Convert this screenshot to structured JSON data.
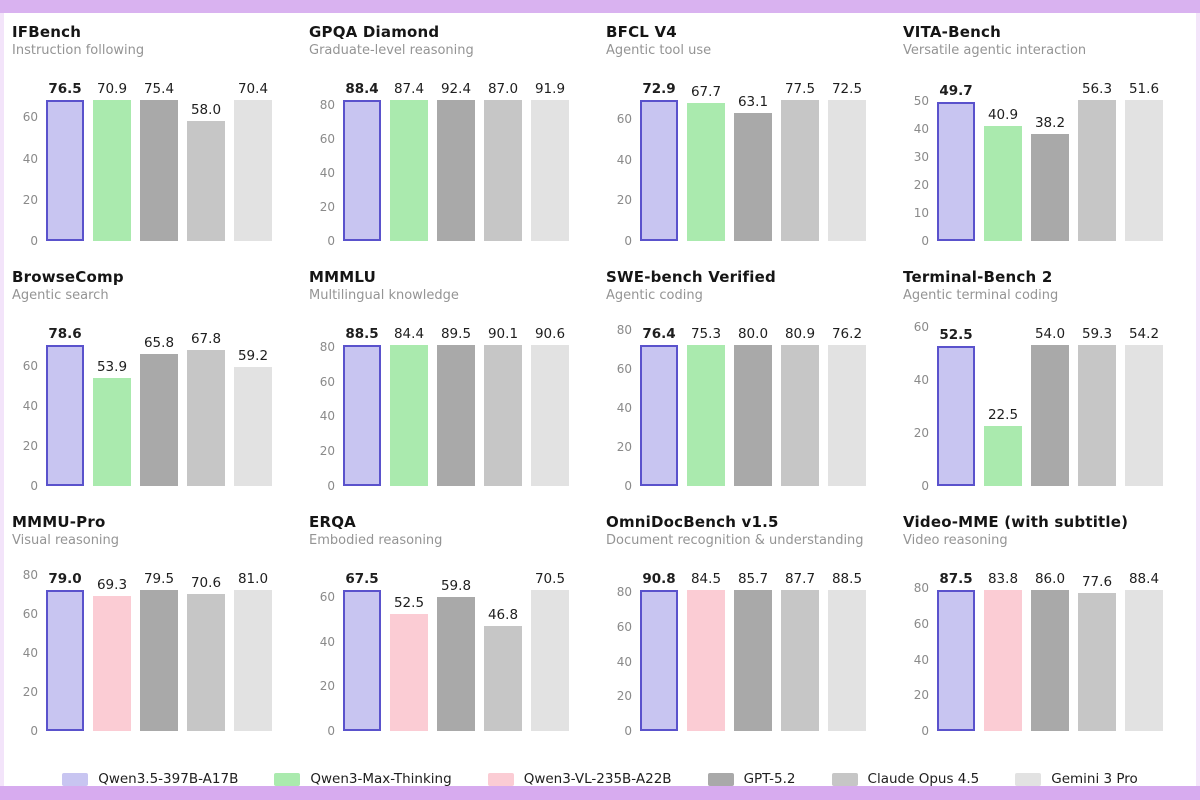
{
  "frame": {
    "top_band_color": "#d9b2f0",
    "bottom_band_color": "#d7abef",
    "side_edge_color": "#f3e4fa"
  },
  "models": [
    {
      "name": "Qwen3.5-397B-A17B",
      "fill": "#c8c5f1",
      "border": "#5a52cc",
      "highlight": true
    },
    {
      "name": "Qwen3-Max-Thinking",
      "fill": "#aaeaae",
      "border": null,
      "highlight": false
    },
    {
      "name": "Qwen3-VL-235B-A22B",
      "fill": "#fbccd4",
      "border": null,
      "highlight": false
    },
    {
      "name": "GPT-5.2",
      "fill": "#a9a9a9",
      "border": null,
      "highlight": false
    },
    {
      "name": "Claude Opus 4.5",
      "fill": "#c6c6c6",
      "border": null,
      "highlight": false
    },
    {
      "name": "Gemini 3 Pro",
      "fill": "#e2e2e2",
      "border": null,
      "highlight": false
    }
  ],
  "chart_data": [
    {
      "type": "bar",
      "title": "IFBench",
      "subtitle": "Instruction following",
      "categories": [
        "Qwen3.5-397B-A17B",
        "Qwen3-Max-Thinking",
        "GPT-5.2",
        "Claude Opus 4.5",
        "Gemini 3 Pro"
      ],
      "model_indices": [
        0,
        1,
        3,
        4,
        5
      ],
      "values": [
        76.5,
        70.9,
        75.4,
        58.0,
        70.4
      ],
      "yticks": [
        0,
        20,
        40,
        60
      ],
      "ylim": [
        0,
        77.6
      ],
      "xlabel": "",
      "ylabel": ""
    },
    {
      "type": "bar",
      "title": "GPQA Diamond",
      "subtitle": "Graduate-level reasoning",
      "categories": [
        "Qwen3.5-397B-A17B",
        "Qwen3-Max-Thinking",
        "GPT-5.2",
        "Claude Opus 4.5",
        "Gemini 3 Pro"
      ],
      "model_indices": [
        0,
        1,
        3,
        4,
        5
      ],
      "values": [
        88.4,
        87.4,
        92.4,
        87.0,
        91.9
      ],
      "yticks": [
        0,
        20,
        40,
        60,
        80
      ],
      "ylim": [
        0,
        93.8
      ],
      "xlabel": "",
      "ylabel": ""
    },
    {
      "type": "bar",
      "title": "BFCL V4",
      "subtitle": "Agentic tool use",
      "categories": [
        "Qwen3.5-397B-A17B",
        "Qwen3-Max-Thinking",
        "GPT-5.2",
        "Claude Opus 4.5",
        "Gemini 3 Pro"
      ],
      "model_indices": [
        0,
        1,
        3,
        4,
        5
      ],
      "values": [
        72.9,
        67.7,
        63.1,
        77.5,
        72.5
      ],
      "yticks": [
        0,
        20,
        40,
        60
      ],
      "ylim": [
        0,
        78.7
      ],
      "xlabel": "",
      "ylabel": ""
    },
    {
      "type": "bar",
      "title": "VITA-Bench",
      "subtitle": "Versatile agentic interaction",
      "categories": [
        "Qwen3.5-397B-A17B",
        "Qwen3-Max-Thinking",
        "GPT-5.2",
        "Claude Opus 4.5",
        "Gemini 3 Pro"
      ],
      "model_indices": [
        0,
        1,
        3,
        4,
        5
      ],
      "values": [
        49.7,
        40.9,
        38.2,
        56.3,
        51.6
      ],
      "yticks": [
        0,
        10,
        20,
        30,
        40,
        50
      ],
      "ylim": [
        0,
        57.1
      ],
      "xlabel": "",
      "ylabel": ""
    },
    {
      "type": "bar",
      "title": "BrowseComp",
      "subtitle": "Agentic search",
      "categories": [
        "Qwen3.5-397B-A17B",
        "Qwen3-Max-Thinking",
        "GPT-5.2",
        "Claude Opus 4.5",
        "Gemini 3 Pro"
      ],
      "model_indices": [
        0,
        1,
        3,
        4,
        5
      ],
      "values": [
        78.6,
        53.9,
        65.8,
        67.8,
        59.2
      ],
      "yticks": [
        0,
        20,
        40,
        60
      ],
      "ylim": [
        0,
        79.8
      ],
      "xlabel": "",
      "ylabel": ""
    },
    {
      "type": "bar",
      "title": "MMMLU",
      "subtitle": "Multilingual knowledge",
      "categories": [
        "Qwen3.5-397B-A17B",
        "Qwen3-Max-Thinking",
        "GPT-5.2",
        "Claude Opus 4.5",
        "Gemini 3 Pro"
      ],
      "model_indices": [
        0,
        1,
        3,
        4,
        5
      ],
      "values": [
        88.5,
        84.4,
        89.5,
        90.1,
        90.6
      ],
      "yticks": [
        0,
        20,
        40,
        60,
        80
      ],
      "ylim": [
        0,
        92.0
      ],
      "xlabel": "",
      "ylabel": ""
    },
    {
      "type": "bar",
      "title": "SWE-bench Verified",
      "subtitle": "Agentic coding",
      "categories": [
        "Qwen3.5-397B-A17B",
        "Qwen3-Max-Thinking",
        "GPT-5.2",
        "Claude Opus 4.5",
        "Gemini 3 Pro"
      ],
      "model_indices": [
        0,
        1,
        3,
        4,
        5
      ],
      "values": [
        76.4,
        75.3,
        80.0,
        80.9,
        76.2
      ],
      "yticks": [
        0,
        20,
        40,
        60,
        80
      ],
      "ylim": [
        0,
        82.1
      ],
      "xlabel": "",
      "ylabel": ""
    },
    {
      "type": "bar",
      "title": "Terminal-Bench 2",
      "subtitle": "Agentic terminal coding",
      "categories": [
        "Qwen3.5-397B-A17B",
        "Qwen3-Max-Thinking",
        "GPT-5.2",
        "Claude Opus 4.5",
        "Gemini 3 Pro"
      ],
      "model_indices": [
        0,
        1,
        3,
        4,
        5
      ],
      "values": [
        52.5,
        22.5,
        54.0,
        59.3,
        54.2
      ],
      "yticks": [
        0,
        20,
        40,
        60
      ],
      "ylim": [
        0,
        60.2
      ],
      "xlabel": "",
      "ylabel": ""
    },
    {
      "type": "bar",
      "title": "MMMU-Pro",
      "subtitle": "Visual reasoning",
      "categories": [
        "Qwen3.5-397B-A17B",
        "Qwen3-VL-235B-A22B",
        "GPT-5.2",
        "Claude Opus 4.5",
        "Gemini 3 Pro"
      ],
      "model_indices": [
        0,
        2,
        3,
        4,
        5
      ],
      "values": [
        79.0,
        69.3,
        79.5,
        70.6,
        81.0
      ],
      "yticks": [
        0,
        20,
        40,
        60,
        80
      ],
      "ylim": [
        0,
        82.2
      ],
      "xlabel": "",
      "ylabel": ""
    },
    {
      "type": "bar",
      "title": "ERQA",
      "subtitle": "Embodied reasoning",
      "categories": [
        "Qwen3.5-397B-A17B",
        "Qwen3-VL-235B-A22B",
        "GPT-5.2",
        "Claude Opus 4.5",
        "Gemini 3 Pro"
      ],
      "model_indices": [
        0,
        2,
        3,
        4,
        5
      ],
      "values": [
        67.5,
        52.5,
        59.8,
        46.8,
        70.5
      ],
      "yticks": [
        0,
        20,
        40,
        60
      ],
      "ylim": [
        0,
        71.6
      ],
      "xlabel": "",
      "ylabel": ""
    },
    {
      "type": "bar",
      "title": "OmniDocBench v1.5",
      "subtitle": "Document recognition & understanding",
      "categories": [
        "Qwen3.5-397B-A17B",
        "Qwen3-VL-235B-A22B",
        "GPT-5.2",
        "Claude Opus 4.5",
        "Gemini 3 Pro"
      ],
      "model_indices": [
        0,
        2,
        3,
        4,
        5
      ],
      "values": [
        90.8,
        84.5,
        85.7,
        87.7,
        88.5
      ],
      "yticks": [
        0,
        20,
        40,
        60,
        80
      ],
      "ylim": [
        0,
        92.2
      ],
      "xlabel": "",
      "ylabel": ""
    },
    {
      "type": "bar",
      "title": "Video-MME (with subtitle)",
      "subtitle": "Video reasoning",
      "categories": [
        "Qwen3.5-397B-A17B",
        "Qwen3-VL-235B-A22B",
        "GPT-5.2",
        "Claude Opus 4.5",
        "Gemini 3 Pro"
      ],
      "model_indices": [
        0,
        2,
        3,
        4,
        5
      ],
      "values": [
        87.5,
        83.8,
        86.0,
        77.6,
        88.4
      ],
      "yticks": [
        0,
        20,
        40,
        60,
        80
      ],
      "ylim": [
        0,
        89.7
      ],
      "xlabel": "",
      "ylabel": ""
    }
  ],
  "legend": {
    "entries": [
      "Qwen3.5-397B-A17B",
      "Qwen3-Max-Thinking",
      "Qwen3-VL-235B-A22B",
      "GPT-5.2",
      "Claude Opus 4.5",
      "Gemini 3 Pro"
    ]
  }
}
